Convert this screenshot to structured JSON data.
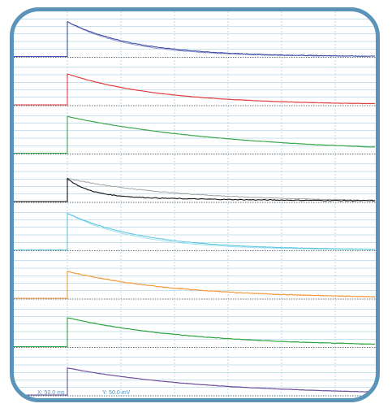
{
  "scale": {
    "x_label": "X: 50.0 ms",
    "y_label": "Y: 50.0 mV"
  },
  "colors": {
    "frame": "#5b93b9",
    "grid": "#8ec3d9",
    "baseline": "#2b3f4d"
  },
  "chart_data": {
    "type": "line",
    "title": "",
    "xlabel": "",
    "ylabel": "",
    "grid": true,
    "channels": [
      {
        "color": "#3f4ea6",
        "second_color": "#8a92c8",
        "peak": 0.9,
        "decay": 0.22,
        "plateau": 0.0,
        "second_decay": 0.2,
        "noise": 0.015
      },
      {
        "color": "#e23b3b",
        "second_color": "#f08080",
        "peak": 0.8,
        "decay": 0.3,
        "plateau": 0.0,
        "second_decay": 0.3,
        "noise": 0.01
      },
      {
        "color": "#3aa54a",
        "second_color": "#6fcf7a",
        "peak": 0.95,
        "decay": 0.55,
        "plateau": 0.0,
        "second_decay": 0.55,
        "noise": 0.01
      },
      {
        "color": "#111111",
        "second_color": "#999999",
        "peak": 0.6,
        "decay": 0.07,
        "plateau": 0.25,
        "plateau_decay": 0.5,
        "second_decay": 0.35,
        "noise": 0.02
      },
      {
        "color": "#5bc7e0",
        "second_color": "#9fdff0",
        "peak": 0.95,
        "decay": 0.25,
        "plateau": 0.0,
        "second_decay": 0.22,
        "noise": 0.01
      },
      {
        "color": "#f39a3c",
        "second_color": "#f7c08a",
        "peak": 0.7,
        "decay": 0.35,
        "plateau": 0.0,
        "second_decay": 0.35,
        "noise": 0.02
      },
      {
        "color": "#2ea33f",
        "second_color": "#74cf80",
        "peak": 0.75,
        "decay": 0.4,
        "plateau": 0.0,
        "second_decay": 0.4,
        "noise": 0.015
      },
      {
        "color": "#6a4a9a",
        "second_color": "#a38ac9",
        "peak": 0.7,
        "decay": 0.45,
        "plateau": 0.0,
        "second_decay": 0.45,
        "noise": 0.01
      }
    ]
  }
}
